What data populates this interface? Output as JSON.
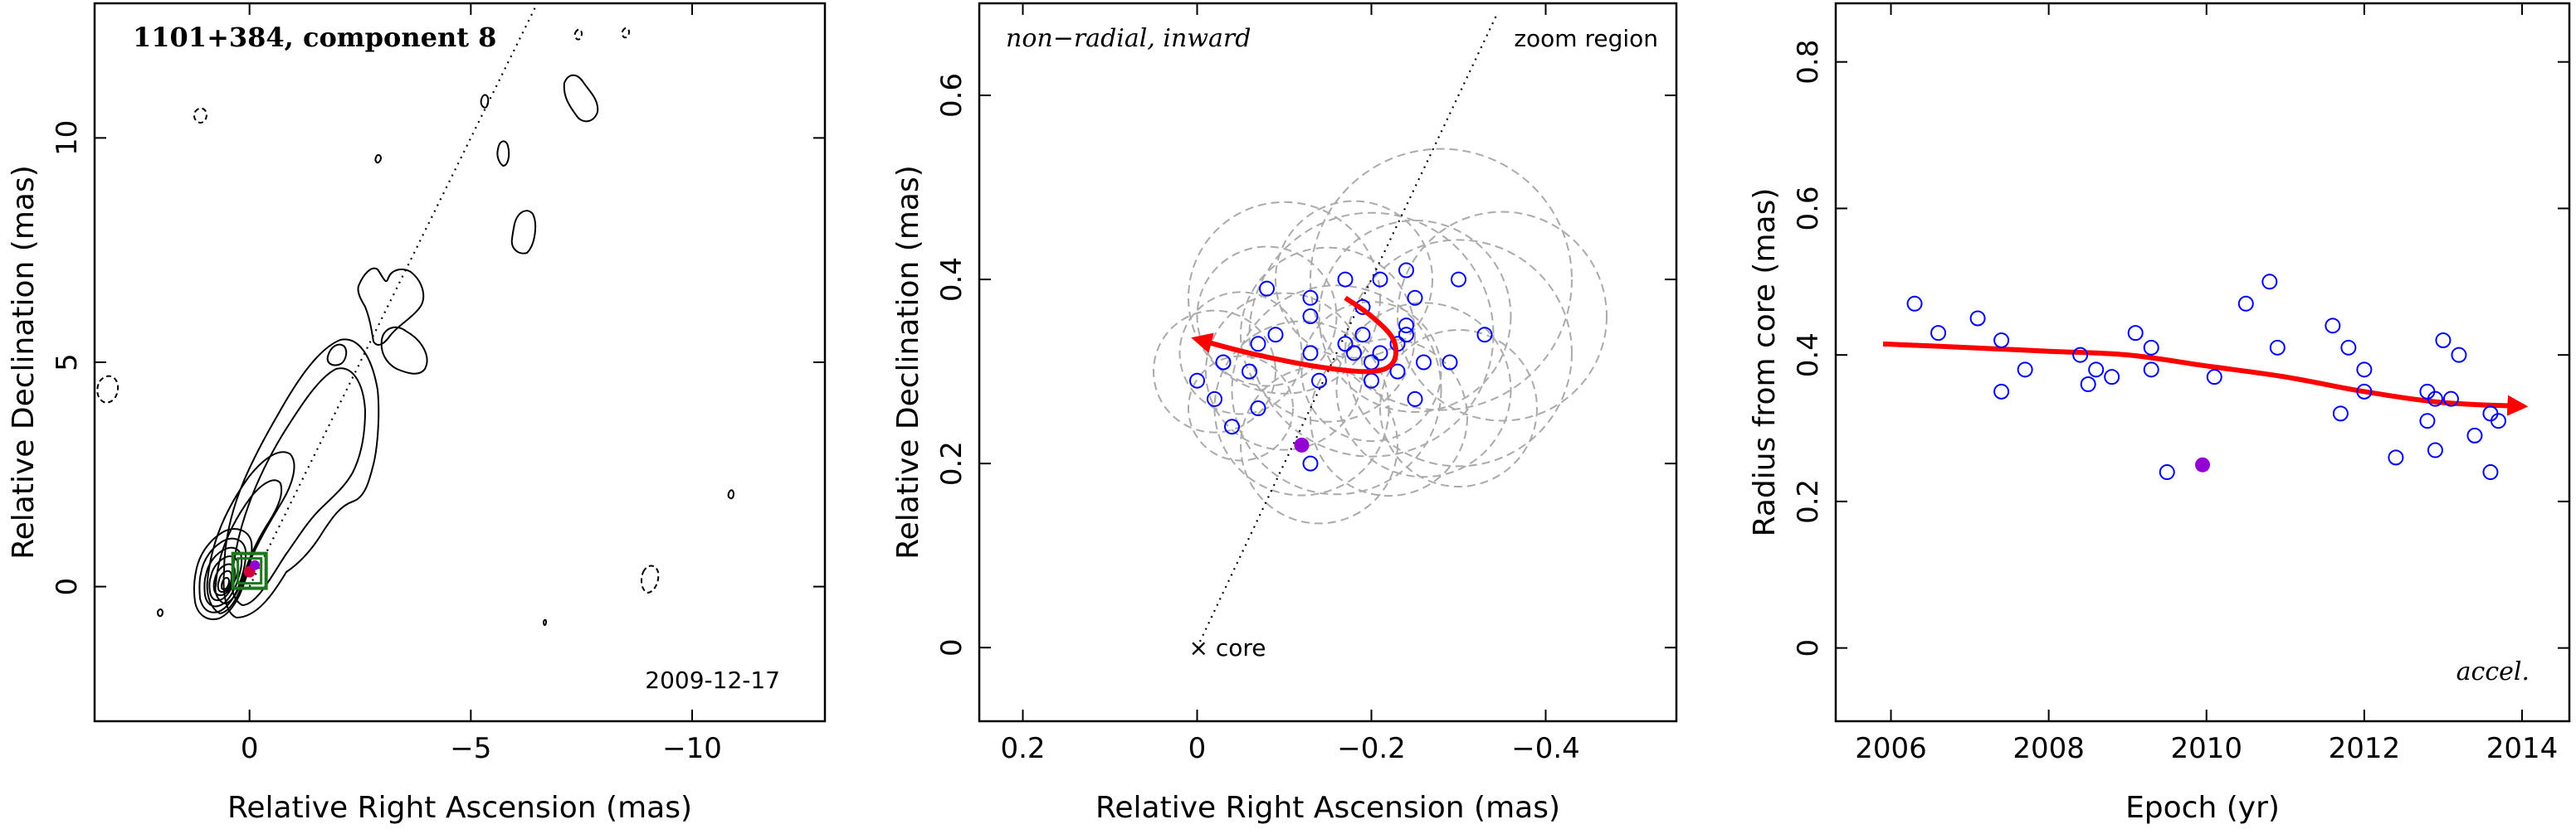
{
  "chart_data": [
    {
      "type": "contour",
      "title": "1101+384, component 8",
      "date": "2009-12-17",
      "xlabel": "Relative Right Ascension (mas)",
      "ylabel": "Relative Declination (mas)",
      "xlim": [
        3.5,
        -13.0
      ],
      "ylim": [
        -3.0,
        13.0
      ],
      "xticks": [
        0,
        -5,
        -10
      ],
      "xtick_labels": [
        "0",
        "−5",
        "−10"
      ],
      "yticks": [
        0,
        5,
        10
      ],
      "ytick_labels": [
        "0",
        "5",
        "10"
      ],
      "core_ra": 0,
      "core_dec": 0,
      "component_ra": -0.12,
      "component_dec": 0.22,
      "direction_line": [
        [
          0,
          0
        ],
        [
          -6.5,
          13.0
        ]
      ],
      "contour_color": "#000000",
      "box_color": "#1a7a1a",
      "component_color": "#9400d3"
    },
    {
      "type": "scatter",
      "note": "non−radial, inward",
      "region_label": "zoom region",
      "core_label": "× core",
      "xlabel": "Relative Right Ascension (mas)",
      "ylabel": "Relative Declination (mas)",
      "xlim": [
        0.25,
        -0.55
      ],
      "ylim": [
        -0.08,
        0.7
      ],
      "xticks": [
        0.2,
        0,
        -0.2,
        -0.4
      ],
      "xtick_labels": [
        "0.2",
        "0",
        "−0.2",
        "−0.4"
      ],
      "yticks": [
        0,
        0.2,
        0.4,
        0.6
      ],
      "ytick_labels": [
        "0",
        "0.2",
        "0.4",
        "0.6"
      ],
      "points": [
        [
          -0.17,
          0.4
        ],
        [
          -0.21,
          0.4
        ],
        [
          -0.24,
          0.41
        ],
        [
          -0.3,
          0.4
        ],
        [
          -0.13,
          0.38
        ],
        [
          -0.08,
          0.39
        ],
        [
          -0.25,
          0.38
        ],
        [
          -0.24,
          0.35
        ],
        [
          -0.19,
          0.34
        ],
        [
          -0.17,
          0.33
        ],
        [
          -0.21,
          0.32
        ],
        [
          -0.19,
          0.37
        ],
        [
          -0.13,
          0.36
        ],
        [
          -0.24,
          0.34
        ],
        [
          -0.23,
          0.33
        ],
        [
          -0.33,
          0.34
        ],
        [
          -0.07,
          0.33
        ],
        [
          -0.09,
          0.34
        ],
        [
          -0.03,
          0.31
        ],
        [
          -0.06,
          0.3
        ],
        [
          -0.13,
          0.32
        ],
        [
          -0.18,
          0.32
        ],
        [
          -0.2,
          0.31
        ],
        [
          -0.26,
          0.31
        ],
        [
          -0.29,
          0.31
        ],
        [
          0.0,
          0.29
        ],
        [
          -0.14,
          0.29
        ],
        [
          -0.23,
          0.3
        ],
        [
          -0.2,
          0.29
        ],
        [
          -0.02,
          0.27
        ],
        [
          -0.07,
          0.26
        ],
        [
          -0.25,
          0.27
        ],
        [
          -0.04,
          0.24
        ],
        [
          -0.13,
          0.2
        ]
      ],
      "highlight_point": [
        -0.12,
        0.22
      ],
      "error_circles": [
        [
          -0.05,
          0.32,
          0.07
        ],
        [
          -0.1,
          0.3,
          0.09
        ],
        [
          -0.15,
          0.34,
          0.1
        ],
        [
          -0.2,
          0.3,
          0.08
        ],
        [
          -0.25,
          0.36,
          0.11
        ],
        [
          -0.3,
          0.32,
          0.13
        ],
        [
          -0.18,
          0.4,
          0.09
        ],
        [
          -0.12,
          0.26,
          0.1
        ],
        [
          -0.22,
          0.25,
          0.09
        ],
        [
          -0.08,
          0.36,
          0.08
        ],
        [
          -0.28,
          0.4,
          0.15
        ],
        [
          -0.16,
          0.28,
          0.12
        ],
        [
          -0.35,
          0.36,
          0.12
        ],
        [
          -0.02,
          0.3,
          0.07
        ],
        [
          -0.14,
          0.22,
          0.09
        ],
        [
          -0.26,
          0.28,
          0.1
        ],
        [
          -0.1,
          0.38,
          0.11
        ],
        [
          -0.2,
          0.34,
          0.14
        ],
        [
          -0.05,
          0.26,
          0.06
        ],
        [
          -0.3,
          0.26,
          0.09
        ]
      ],
      "trajectory": [
        [
          -0.17,
          0.38
        ],
        [
          -0.2,
          0.36
        ],
        [
          -0.225,
          0.335
        ],
        [
          -0.225,
          0.31
        ],
        [
          -0.2,
          0.3
        ],
        [
          -0.14,
          0.305
        ],
        [
          -0.06,
          0.32
        ],
        [
          0.0,
          0.335
        ]
      ],
      "direction_line": [
        [
          0,
          0
        ],
        [
          -0.345,
          0.69
        ]
      ],
      "point_color": "#0000ff",
      "highlight_color": "#9400d3",
      "circle_color": "#aaaaaa",
      "trajectory_color": "#ff0000"
    },
    {
      "type": "scatter",
      "note": "accel.",
      "xlabel": "Epoch (yr)",
      "ylabel": "Radius from core (mas)",
      "xlim": [
        2005.3,
        2014.6
      ],
      "ylim": [
        -0.1,
        0.88
      ],
      "xticks": [
        2006,
        2008,
        2010,
        2012,
        2014
      ],
      "xtick_labels": [
        "2006",
        "2008",
        "2010",
        "2012",
        "2014"
      ],
      "yticks": [
        0,
        0.2,
        0.4,
        0.6,
        0.8
      ],
      "ytick_labels": [
        "0",
        "0.2",
        "0.4",
        "0.6",
        "0.8"
      ],
      "points": [
        [
          2006.3,
          0.47
        ],
        [
          2006.6,
          0.43
        ],
        [
          2007.1,
          0.45
        ],
        [
          2007.4,
          0.42
        ],
        [
          2007.4,
          0.35
        ],
        [
          2007.7,
          0.38
        ],
        [
          2008.4,
          0.4
        ],
        [
          2008.5,
          0.36
        ],
        [
          2008.6,
          0.38
        ],
        [
          2008.8,
          0.37
        ],
        [
          2009.1,
          0.43
        ],
        [
          2009.3,
          0.38
        ],
        [
          2009.3,
          0.41
        ],
        [
          2009.5,
          0.24
        ],
        [
          2010.1,
          0.37
        ],
        [
          2010.5,
          0.47
        ],
        [
          2010.8,
          0.5
        ],
        [
          2010.9,
          0.41
        ],
        [
          2011.6,
          0.44
        ],
        [
          2011.7,
          0.32
        ],
        [
          2011.8,
          0.41
        ],
        [
          2012.0,
          0.35
        ],
        [
          2012.0,
          0.38
        ],
        [
          2012.4,
          0.26
        ],
        [
          2012.8,
          0.35
        ],
        [
          2012.8,
          0.31
        ],
        [
          2012.9,
          0.34
        ],
        [
          2012.9,
          0.27
        ],
        [
          2013.0,
          0.42
        ],
        [
          2013.1,
          0.34
        ],
        [
          2013.2,
          0.4
        ],
        [
          2013.4,
          0.29
        ],
        [
          2013.6,
          0.24
        ],
        [
          2013.6,
          0.32
        ],
        [
          2013.7,
          0.31
        ]
      ],
      "highlight_point": [
        2009.95,
        0.25
      ],
      "trend": [
        [
          2005.9,
          0.415
        ],
        [
          2007.0,
          0.41
        ],
        [
          2008.0,
          0.405
        ],
        [
          2009.0,
          0.4
        ],
        [
          2010.0,
          0.385
        ],
        [
          2011.0,
          0.37
        ],
        [
          2012.0,
          0.35
        ],
        [
          2013.0,
          0.335
        ],
        [
          2014.0,
          0.33
        ]
      ],
      "point_color": "#0000ff",
      "highlight_color": "#9400d3",
      "trend_color": "#ff0000"
    }
  ]
}
